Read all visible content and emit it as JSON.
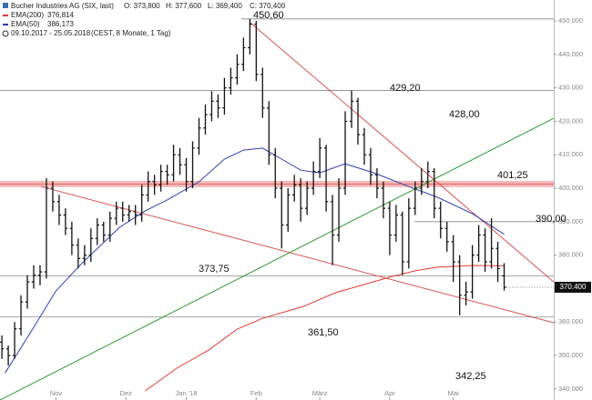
{
  "chart_data": {
    "type": "ohlc",
    "title": "Bucher Industries AG (SIX, last)",
    "ohlc_header": [
      "O: 373,800",
      "H: 377,600",
      "L: 369,400",
      "C: 370,400"
    ],
    "period": "09.10.2017 - 25.05.2018",
    "period_note": "(CEST, 8 Monate, 1 Tag)",
    "bar_color": "#111111",
    "xlim": [
      -0.6,
      173.6
    ],
    "ylim": [
      336.7,
      456.25
    ],
    "xticks": [
      {
        "value": 17,
        "label": "Nov"
      },
      {
        "value": 39,
        "label": "Dez"
      },
      {
        "value": 58,
        "label": "Jan '18"
      },
      {
        "value": 80,
        "label": "Feb"
      },
      {
        "value": 100,
        "label": "März"
      },
      {
        "value": 122,
        "label": "Apr"
      },
      {
        "value": 142,
        "label": "Mai"
      }
    ],
    "yticks": [
      {
        "value": 340,
        "label": "340.000"
      },
      {
        "value": 350,
        "label": "350.000"
      },
      {
        "value": 360,
        "label": "360.000"
      },
      {
        "value": 370,
        "label": "370.000"
      },
      {
        "value": 380,
        "label": "380.000"
      },
      {
        "value": 390,
        "label": "390.000"
      },
      {
        "value": 400,
        "label": "400.000"
      },
      {
        "value": 410,
        "label": "410.000"
      },
      {
        "value": 420,
        "label": "420.000"
      },
      {
        "value": 430,
        "label": "430.000"
      },
      {
        "value": 440,
        "label": "440.000"
      },
      {
        "value": 450,
        "label": "450.000"
      }
    ],
    "last": {
      "value": 370.4,
      "label": "370.400"
    },
    "ohlc": {
      "x": [
        0,
        2,
        4,
        6,
        8,
        10,
        12,
        14,
        16,
        18,
        20,
        22,
        24,
        26,
        28,
        30,
        32,
        34,
        36,
        38,
        40,
        42,
        44,
        46,
        48,
        50,
        52,
        54,
        56,
        58,
        60,
        62,
        64,
        66,
        68,
        70,
        72,
        74,
        76,
        78,
        80,
        82,
        84,
        86,
        88,
        90,
        92,
        94,
        96,
        98,
        100,
        102,
        104,
        106,
        108,
        110,
        112,
        114,
        116,
        118,
        120,
        122,
        124,
        126,
        128,
        130,
        132,
        134,
        136,
        138,
        140,
        142,
        144,
        146,
        148,
        150,
        152,
        154,
        156,
        158
      ],
      "open": [
        354,
        352,
        350,
        358,
        366,
        372,
        374,
        375,
        400,
        396,
        392,
        388,
        383,
        379,
        380,
        385,
        389,
        386,
        391,
        394,
        392,
        393,
        392,
        398,
        402,
        401,
        405,
        404,
        410,
        407,
        402,
        412,
        418,
        422,
        426,
        424,
        430,
        433,
        437,
        442,
        449,
        434,
        424,
        410,
        400,
        389,
        398,
        401,
        394,
        400,
        405,
        412,
        396,
        386,
        400,
        420,
        426,
        416,
        410,
        404,
        400,
        394,
        386,
        392,
        378,
        394,
        400,
        402,
        405,
        394,
        388,
        384,
        378,
        368,
        369,
        380,
        386,
        378,
        382,
        373.8
      ],
      "high": [
        356,
        353,
        360,
        368,
        374,
        377,
        377,
        403,
        402,
        398,
        394,
        390,
        385,
        383,
        388,
        391,
        390,
        393,
        396,
        396,
        395,
        395,
        401,
        405,
        404,
        407,
        407,
        413,
        412,
        409,
        414,
        421,
        425,
        429,
        428,
        433,
        436,
        440,
        445,
        450.6,
        450,
        436,
        426,
        412,
        402,
        400,
        404,
        403,
        402,
        408,
        415,
        413,
        398,
        403,
        423,
        429.2,
        427,
        418,
        412,
        406,
        402,
        396,
        395,
        393,
        397,
        402,
        406,
        408,
        406,
        396,
        390,
        386,
        380,
        372,
        383,
        389,
        388,
        391,
        384,
        377.6
      ],
      "low": [
        349,
        347,
        349,
        356,
        364,
        370,
        371,
        373,
        393,
        389,
        386,
        380,
        376,
        377,
        378,
        383,
        384,
        384,
        389,
        390,
        390,
        389,
        390,
        396,
        398,
        399,
        401,
        402,
        404,
        399,
        400,
        410,
        416,
        420,
        421,
        422,
        428,
        431,
        435,
        440,
        432,
        421,
        407,
        397,
        382,
        387,
        396,
        390,
        392,
        398,
        403,
        393,
        377,
        384,
        398,
        418,
        413,
        407,
        401,
        397,
        391,
        380,
        384,
        374,
        376,
        392,
        398,
        400,
        391,
        385,
        381,
        372,
        362,
        365,
        367,
        378,
        375,
        376,
        372,
        369.4
      ],
      "close": [
        352,
        350,
        358,
        366,
        372,
        374,
        375,
        400,
        396,
        392,
        388,
        383,
        379,
        380,
        385,
        389,
        386,
        391,
        394,
        392,
        393,
        392,
        398,
        402,
        401,
        405,
        404,
        410,
        407,
        402,
        412,
        418,
        422,
        426,
        424,
        430,
        433,
        437,
        442,
        449,
        434,
        424,
        410,
        400,
        389,
        398,
        401,
        394,
        400,
        405,
        412,
        396,
        386,
        400,
        420,
        426,
        416,
        410,
        404,
        400,
        394,
        386,
        392,
        378,
        394,
        400,
        402,
        405,
        394,
        388,
        384,
        378,
        368,
        369,
        380,
        386,
        378,
        382,
        376,
        370.4
      ]
    },
    "ema": [
      {
        "name": "EMA(200)",
        "value_label": "376,814",
        "color": "#e03a2f",
        "x": [
          45,
          55,
          65,
          74,
          82,
          95,
          105,
          115,
          122,
          130,
          137,
          148,
          158
        ],
        "values": [
          339.4,
          346.2,
          351.6,
          357.9,
          361.1,
          364.7,
          368.8,
          371.5,
          373.4,
          375.3,
          376.4,
          376.9,
          376.8
        ]
      },
      {
        "name": "EMA(50)",
        "value_label": "386,173",
        "color": "#2d3fb0",
        "x": [
          1,
          10,
          17,
          25,
          37,
          45,
          52,
          62,
          70,
          76,
          82,
          88,
          94,
          100,
          108,
          117,
          128,
          137,
          148,
          158
        ],
        "values": [
          344.8,
          358.4,
          369.3,
          377.4,
          388.3,
          393.2,
          396.5,
          401.9,
          408.7,
          411.4,
          412,
          408.7,
          405.4,
          404.6,
          407.3,
          404.6,
          400.5,
          397.3,
          392.4,
          386.2
        ]
      }
    ],
    "trendlines": [
      {
        "color": "#d9534f",
        "x": [
          78,
          173.6
        ],
        "y": [
          449.6,
          372
        ]
      },
      {
        "color": "#d9534f",
        "x": [
          12.3,
          173.6
        ],
        "y": [
          400.5,
          359.8
        ]
      },
      {
        "color": "#2e9a2e",
        "x": [
          -0.6,
          173.6
        ],
        "y": [
          336.7,
          420.9
        ]
      }
    ],
    "levels": [
      {
        "value": 450.6,
        "label": "450,60",
        "line": true
      },
      {
        "value": 429.2,
        "label": "429,20",
        "line": true
      },
      {
        "value": 428,
        "label": "428,00",
        "line": false
      },
      {
        "value": 401.25,
        "label": "401,25",
        "line": true,
        "band": true
      },
      {
        "value": 390,
        "label": "390,00",
        "line": true
      },
      {
        "value": 373.75,
        "label": "373,75",
        "line": true
      },
      {
        "value": 361.5,
        "label": "361,50",
        "line": true
      },
      {
        "value": 342.25,
        "label": "342,25",
        "line": false
      }
    ]
  }
}
